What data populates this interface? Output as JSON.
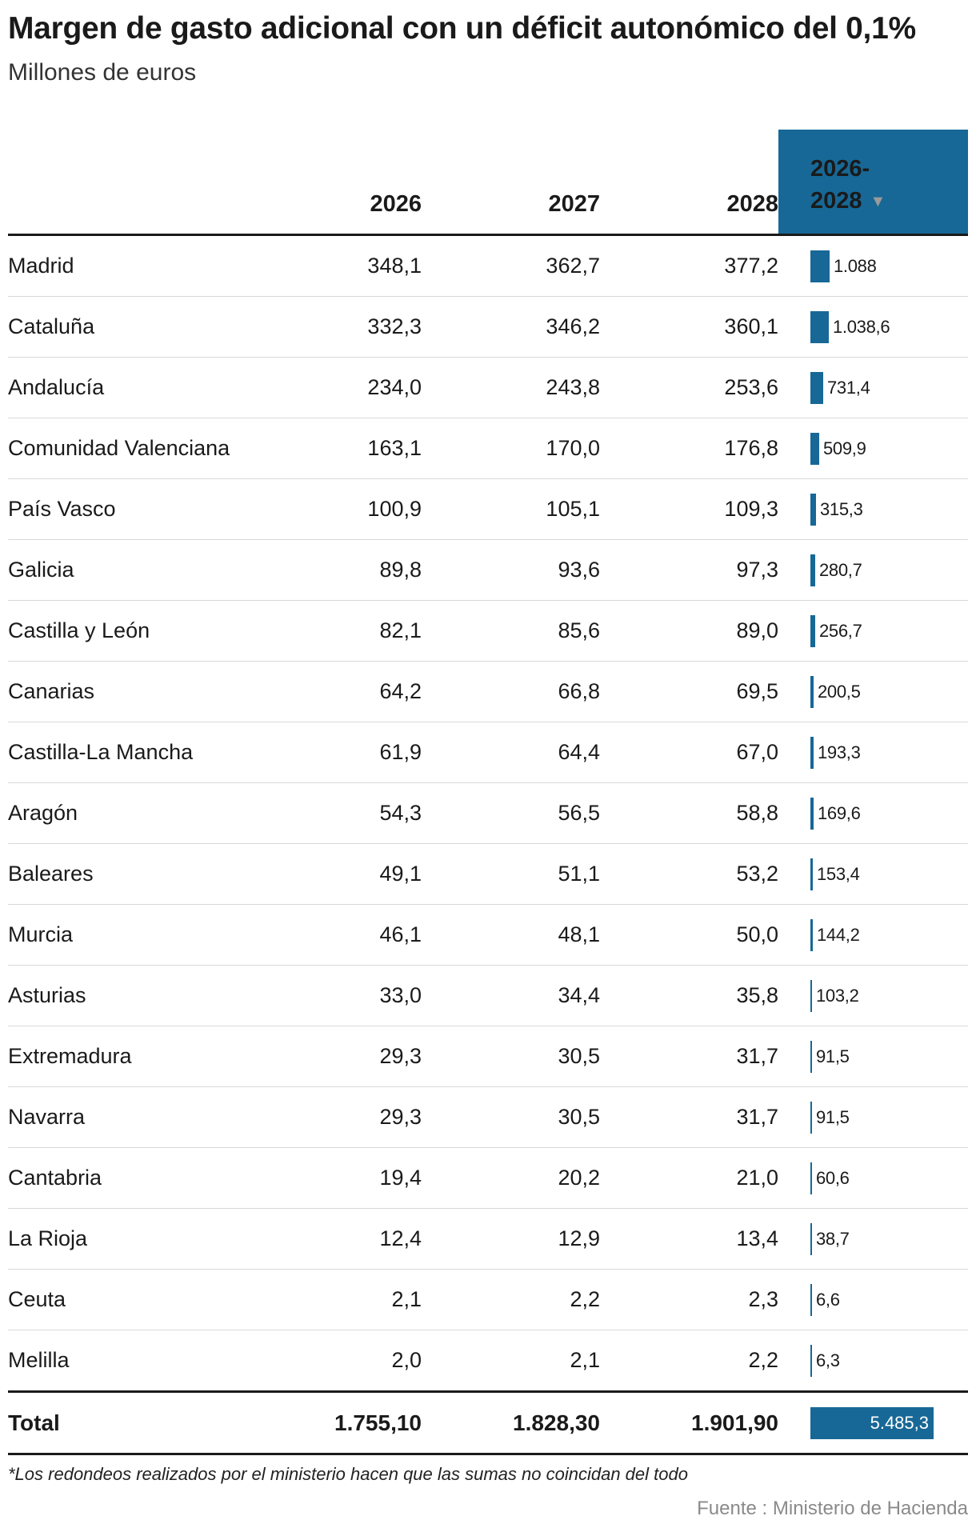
{
  "title": "Margen de gasto adicional con un déficit autonómico del 0,1%",
  "subtitle": "Millones de euros",
  "headers": {
    "col_2026": "2026",
    "col_2027": "2027",
    "col_2028": "2028",
    "col_total": "2026-2028"
  },
  "sort_indicator": "▼",
  "footnote": "*Los redondeos realizados por el ministerio hacen que las sumas no coincidan del todo",
  "source": "Fuente : Ministerio de Hacienda",
  "colors": {
    "bar": "#176896",
    "text": "#1a1a1a",
    "source": "#8a8a8a"
  },
  "chart_data": {
    "type": "table",
    "columns": [
      "2026",
      "2027",
      "2028",
      "2026-2028"
    ],
    "bar_column": "2026-2028",
    "rows": [
      {
        "name": "Madrid",
        "y2026": "348,1",
        "y2027": "362,7",
        "y2028": "377,2",
        "total": "1.088",
        "value": 1088
      },
      {
        "name": "Cataluña",
        "y2026": "332,3",
        "y2027": "346,2",
        "y2028": "360,1",
        "total": "1.038,6",
        "value": 1038.6
      },
      {
        "name": "Andalucía",
        "y2026": "234,0",
        "y2027": "243,8",
        "y2028": "253,6",
        "total": "731,4",
        "value": 731.4
      },
      {
        "name": "Comunidad Valenciana",
        "y2026": "163,1",
        "y2027": "170,0",
        "y2028": "176,8",
        "total": "509,9",
        "value": 509.9
      },
      {
        "name": "País Vasco",
        "y2026": "100,9",
        "y2027": "105,1",
        "y2028": "109,3",
        "total": "315,3",
        "value": 315.3
      },
      {
        "name": "Galicia",
        "y2026": "89,8",
        "y2027": "93,6",
        "y2028": "97,3",
        "total": "280,7",
        "value": 280.7
      },
      {
        "name": "Castilla y León",
        "y2026": "82,1",
        "y2027": "85,6",
        "y2028": "89,0",
        "total": "256,7",
        "value": 256.7
      },
      {
        "name": "Canarias",
        "y2026": "64,2",
        "y2027": "66,8",
        "y2028": "69,5",
        "total": "200,5",
        "value": 200.5
      },
      {
        "name": "Castilla-La Mancha",
        "y2026": "61,9",
        "y2027": "64,4",
        "y2028": "67,0",
        "total": "193,3",
        "value": 193.3
      },
      {
        "name": "Aragón",
        "y2026": "54,3",
        "y2027": "56,5",
        "y2028": "58,8",
        "total": "169,6",
        "value": 169.6
      },
      {
        "name": "Baleares",
        "y2026": "49,1",
        "y2027": "51,1",
        "y2028": "53,2",
        "total": "153,4",
        "value": 153.4
      },
      {
        "name": "Murcia",
        "y2026": "46,1",
        "y2027": "48,1",
        "y2028": "50,0",
        "total": "144,2",
        "value": 144.2
      },
      {
        "name": "Asturias",
        "y2026": "33,0",
        "y2027": "34,4",
        "y2028": "35,8",
        "total": "103,2",
        "value": 103.2
      },
      {
        "name": "Extremadura",
        "y2026": "29,3",
        "y2027": "30,5",
        "y2028": "31,7",
        "total": "91,5",
        "value": 91.5
      },
      {
        "name": "Navarra",
        "y2026": "29,3",
        "y2027": "30,5",
        "y2028": "31,7",
        "total": "91,5",
        "value": 91.5
      },
      {
        "name": "Cantabria",
        "y2026": "19,4",
        "y2027": "20,2",
        "y2028": "21,0",
        "total": "60,6",
        "value": 60.6
      },
      {
        "name": "La Rioja",
        "y2026": "12,4",
        "y2027": "12,9",
        "y2028": "13,4",
        "total": "38,7",
        "value": 38.7
      },
      {
        "name": "Ceuta",
        "y2026": "2,1",
        "y2027": "2,2",
        "y2028": "2,3",
        "total": "6,6",
        "value": 6.6
      },
      {
        "name": "Melilla",
        "y2026": "2,0",
        "y2027": "2,1",
        "y2028": "2,2",
        "total": "6,3",
        "value": 6.3
      }
    ],
    "total_row": {
      "name": "Total",
      "y2026": "1.755,10",
      "y2027": "1.828,30",
      "y2028": "1.901,90",
      "total": "5.485,3",
      "value": 5485.3
    }
  }
}
